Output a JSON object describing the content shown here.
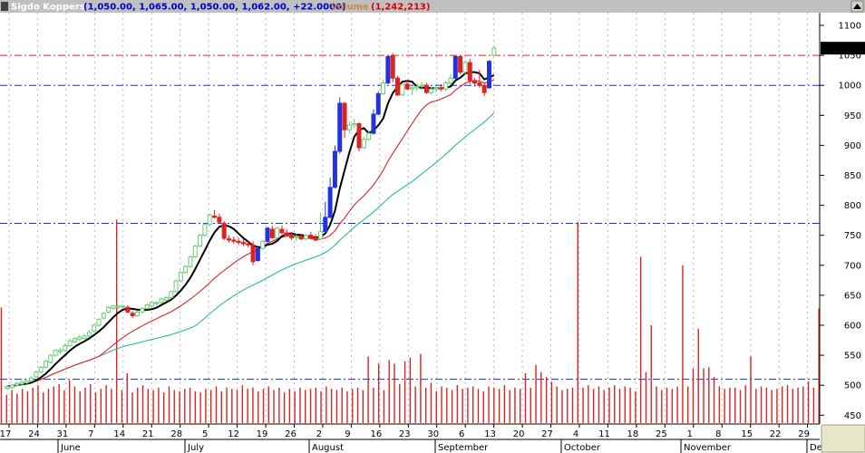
{
  "header": {
    "name": "Sigdo Koppers",
    "ohlc": "(1,050.00, 1,065.00, 1,050.00, 1,062.00, +22.0000)",
    "volume_label": "Volume",
    "volume_value": "(1,242,213)",
    "colors": {
      "name": "#ffffff",
      "ohlc": "#0000cc",
      "volume_label": "#cc8844",
      "volume_value": "#dd0000"
    }
  },
  "chart_data": {
    "type": "candlestick",
    "y_ticks": [
      "1100",
      "1050",
      "1000",
      "950",
      "900",
      "850",
      "800",
      "750",
      "700",
      "650",
      "600",
      "550",
      "500",
      "450"
    ],
    "ylim": [
      440,
      1112
    ],
    "last_price_label": "1062.00",
    "x_tick_labels": [
      "17",
      "24",
      "31",
      "7",
      "14",
      "21",
      "28",
      "5",
      "12",
      "19",
      "26",
      "2",
      "9",
      "16",
      "23",
      "30",
      "6",
      "13",
      "20",
      "27",
      "4",
      "11",
      "18",
      "25",
      "1",
      "8",
      "15",
      "22",
      "29"
    ],
    "month_labels": [
      "June",
      "July",
      "August",
      "September",
      "October",
      "November",
      "Dec"
    ],
    "reference_lines": [
      1050,
      1000,
      770,
      510
    ],
    "candles": [
      [
        495,
        500,
        492,
        498
      ],
      [
        496,
        502,
        494,
        500
      ],
      [
        500,
        506,
        498,
        503
      ],
      [
        502,
        508,
        500,
        505
      ],
      [
        504,
        510,
        502,
        507
      ],
      [
        507,
        515,
        505,
        512
      ],
      [
        514,
        524,
        512,
        522
      ],
      [
        522,
        532,
        520,
        530
      ],
      [
        530,
        542,
        528,
        540
      ],
      [
        538,
        552,
        536,
        550
      ],
      [
        550,
        560,
        548,
        558
      ],
      [
        556,
        562,
        552,
        558
      ],
      [
        558,
        570,
        556,
        566
      ],
      [
        566,
        578,
        564,
        574
      ],
      [
        572,
        580,
        570,
        578
      ],
      [
        576,
        584,
        574,
        580
      ],
      [
        578,
        586,
        576,
        582
      ],
      [
        582,
        592,
        580,
        588
      ],
      [
        590,
        602,
        588,
        600
      ],
      [
        600,
        612,
        598,
        610
      ],
      [
        612,
        622,
        610,
        620
      ],
      [
        622,
        632,
        620,
        630
      ],
      [
        628,
        634,
        626,
        632
      ],
      [
        630,
        634,
        628,
        632
      ],
      [
        631,
        634,
        628,
        632
      ],
      [
        630,
        633,
        620,
        622
      ],
      [
        620,
        624,
        612,
        616
      ],
      [
        616,
        624,
        614,
        622
      ],
      [
        622,
        630,
        620,
        628
      ],
      [
        628,
        636,
        626,
        634
      ],
      [
        632,
        640,
        630,
        638
      ],
      [
        636,
        640,
        632,
        638
      ],
      [
        638,
        646,
        636,
        644
      ],
      [
        642,
        648,
        640,
        646
      ],
      [
        646,
        658,
        644,
        656
      ],
      [
        656,
        676,
        654,
        674
      ],
      [
        674,
        690,
        672,
        688
      ],
      [
        688,
        700,
        686,
        698
      ],
      [
        698,
        716,
        696,
        714
      ],
      [
        714,
        734,
        712,
        732
      ],
      [
        732,
        752,
        730,
        750
      ],
      [
        750,
        770,
        748,
        768
      ],
      [
        768,
        786,
        766,
        784
      ],
      [
        782,
        792,
        778,
        780
      ],
      [
        780,
        786,
        770,
        772
      ],
      [
        770,
        774,
        742,
        745
      ],
      [
        744,
        750,
        738,
        742
      ],
      [
        742,
        748,
        736,
        740
      ],
      [
        740,
        746,
        734,
        738
      ],
      [
        738,
        744,
        732,
        736
      ],
      [
        736,
        742,
        730,
        734
      ],
      [
        734,
        740,
        700,
        706
      ],
      [
        708,
        730,
        706,
        728
      ],
      [
        728,
        742,
        726,
        740
      ],
      [
        740,
        764,
        738,
        762
      ],
      [
        760,
        766,
        744,
        746
      ],
      [
        746,
        764,
        744,
        762
      ],
      [
        760,
        766,
        752,
        754
      ],
      [
        754,
        760,
        748,
        750
      ],
      [
        750,
        756,
        742,
        746
      ],
      [
        746,
        752,
        740,
        748
      ],
      [
        748,
        752,
        742,
        744
      ],
      [
        744,
        752,
        742,
        750
      ],
      [
        750,
        756,
        744,
        746
      ],
      [
        746,
        752,
        740,
        742
      ],
      [
        744,
        788,
        742,
        756
      ],
      [
        756,
        806,
        754,
        780
      ],
      [
        780,
        846,
        778,
        830
      ],
      [
        830,
        900,
        828,
        890
      ],
      [
        890,
        980,
        886,
        970
      ],
      [
        970,
        972,
        912,
        926
      ],
      [
        926,
        940,
        920,
        934
      ],
      [
        934,
        944,
        928,
        936
      ],
      [
        936,
        938,
        890,
        896
      ],
      [
        896,
        914,
        894,
        910
      ],
      [
        910,
        926,
        908,
        920
      ],
      [
        920,
        960,
        918,
        952
      ],
      [
        952,
        990,
        950,
        986
      ],
      [
        986,
        1010,
        984,
        1004
      ],
      [
        1004,
        1050,
        1002,
        1048
      ],
      [
        1050,
        1054,
        1005,
        1012
      ],
      [
        1012,
        1016,
        982,
        984
      ],
      [
        984,
        1004,
        982,
        1002
      ],
      [
        1002,
        1008,
        992,
        994
      ],
      [
        994,
        1002,
        984,
        996
      ],
      [
        996,
        1004,
        990,
        998
      ],
      [
        998,
        1006,
        992,
        1000
      ],
      [
        1000,
        1004,
        986,
        988
      ],
      [
        988,
        998,
        984,
        994
      ],
      [
        994,
        1002,
        988,
        996
      ],
      [
        996,
        1002,
        990,
        994
      ],
      [
        994,
        1008,
        990,
        1004
      ],
      [
        1004,
        1018,
        1000,
        1012
      ],
      [
        1012,
        1050,
        1010,
        1048
      ],
      [
        1048,
        1050,
        1018,
        1022
      ],
      [
        1022,
        1042,
        1018,
        1038
      ],
      [
        1038,
        1044,
        1002,
        1008
      ],
      [
        1008,
        1012,
        998,
        1004
      ],
      [
        1004,
        1026,
        996,
        1000
      ],
      [
        1000,
        1004,
        982,
        988
      ],
      [
        996,
        1042,
        994,
        1040
      ],
      [
        1050,
        1065,
        1050,
        1062
      ]
    ],
    "volume_bars": [
      [
        0,
        630
      ],
      [
        1,
        484
      ],
      [
        2,
        492
      ],
      [
        3,
        486
      ],
      [
        4,
        494
      ],
      [
        5,
        490
      ],
      [
        6,
        496
      ],
      [
        7,
        500
      ],
      [
        8,
        488
      ],
      [
        9,
        494
      ],
      [
        10,
        498
      ],
      [
        11,
        502
      ],
      [
        12,
        492
      ],
      [
        13,
        508
      ],
      [
        14,
        498
      ],
      [
        15,
        490
      ],
      [
        16,
        496
      ],
      [
        17,
        502
      ],
      [
        18,
        488
      ],
      [
        19,
        494
      ],
      [
        20,
        500
      ],
      [
        21,
        494
      ],
      [
        22,
        776
      ],
      [
        23,
        492
      ],
      [
        24,
        520
      ],
      [
        25,
        488
      ],
      [
        26,
        496
      ],
      [
        27,
        500
      ],
      [
        28,
        494
      ],
      [
        29,
        492
      ],
      [
        30,
        496
      ],
      [
        31,
        488
      ],
      [
        32,
        498
      ],
      [
        33,
        492
      ],
      [
        34,
        490
      ],
      [
        35,
        494
      ],
      [
        36,
        496
      ],
      [
        37,
        490
      ],
      [
        38,
        488
      ],
      [
        39,
        494
      ],
      [
        40,
        492
      ],
      [
        41,
        498
      ],
      [
        42,
        490
      ],
      [
        43,
        496
      ],
      [
        44,
        494
      ],
      [
        45,
        492
      ],
      [
        46,
        500
      ],
      [
        47,
        494
      ],
      [
        48,
        496
      ],
      [
        49,
        490
      ],
      [
        50,
        494
      ],
      [
        51,
        498
      ],
      [
        52,
        492
      ],
      [
        53,
        496
      ],
      [
        54,
        488
      ],
      [
        55,
        494
      ],
      [
        56,
        490
      ],
      [
        57,
        496
      ],
      [
        58,
        492
      ],
      [
        59,
        494
      ],
      [
        60,
        496
      ],
      [
        61,
        490
      ],
      [
        62,
        498
      ],
      [
        63,
        494
      ],
      [
        64,
        492
      ],
      [
        65,
        496
      ],
      [
        66,
        490
      ],
      [
        67,
        494
      ],
      [
        68,
        496
      ],
      [
        69,
        492
      ],
      [
        70,
        548
      ],
      [
        71,
        496
      ],
      [
        72,
        536
      ],
      [
        73,
        492
      ],
      [
        74,
        542
      ],
      [
        75,
        536
      ],
      [
        76,
        502
      ],
      [
        77,
        540
      ],
      [
        78,
        546
      ],
      [
        79,
        498
      ],
      [
        80,
        552
      ],
      [
        81,
        496
      ],
      [
        82,
        504
      ],
      [
        83,
        490
      ],
      [
        84,
        498
      ],
      [
        85,
        496
      ],
      [
        86,
        492
      ],
      [
        87,
        500
      ],
      [
        88,
        494
      ],
      [
        89,
        496
      ],
      [
        90,
        498
      ],
      [
        91,
        494
      ],
      [
        92,
        490
      ],
      [
        93,
        498
      ],
      [
        94,
        496
      ],
      [
        95,
        494
      ],
      [
        96,
        500
      ],
      [
        97,
        492
      ],
      [
        98,
        496
      ],
      [
        99,
        494
      ],
      [
        100,
        520
      ],
      [
        101,
        496
      ],
      [
        102,
        534
      ],
      [
        103,
        522
      ],
      [
        104,
        514
      ],
      [
        105,
        506
      ],
      [
        106,
        498
      ],
      [
        107,
        492
      ],
      [
        108,
        494
      ],
      [
        109,
        496
      ],
      [
        110,
        772
      ],
      [
        111,
        496
      ],
      [
        112,
        500
      ],
      [
        113,
        494
      ],
      [
        114,
        498
      ],
      [
        115,
        492
      ],
      [
        116,
        496
      ],
      [
        117,
        500
      ],
      [
        118,
        494
      ],
      [
        119,
        498
      ],
      [
        120,
        496
      ],
      [
        121,
        490
      ],
      [
        122,
        714
      ],
      [
        123,
        522
      ],
      [
        124,
        600
      ],
      [
        125,
        498
      ],
      [
        126,
        492
      ],
      [
        127,
        496
      ],
      [
        128,
        494
      ],
      [
        129,
        498
      ],
      [
        130,
        700
      ],
      [
        131,
        498
      ],
      [
        132,
        528
      ],
      [
        133,
        594
      ],
      [
        134,
        528
      ],
      [
        135,
        530
      ],
      [
        136,
        514
      ],
      [
        137,
        498
      ],
      [
        138,
        494
      ],
      [
        139,
        496
      ],
      [
        140,
        496
      ],
      [
        141,
        492
      ],
      [
        142,
        500
      ],
      [
        143,
        548
      ],
      [
        144,
        494
      ],
      [
        145,
        498
      ],
      [
        146,
        496
      ],
      [
        147,
        492
      ],
      [
        148,
        494
      ],
      [
        149,
        498
      ],
      [
        150,
        500
      ],
      [
        151,
        494
      ],
      [
        152,
        496
      ],
      [
        153,
        498
      ],
      [
        154,
        506
      ],
      [
        155,
        496
      ],
      [
        156,
        628
      ],
      [
        157,
        496
      ],
      [
        158,
        556
      ]
    ]
  }
}
